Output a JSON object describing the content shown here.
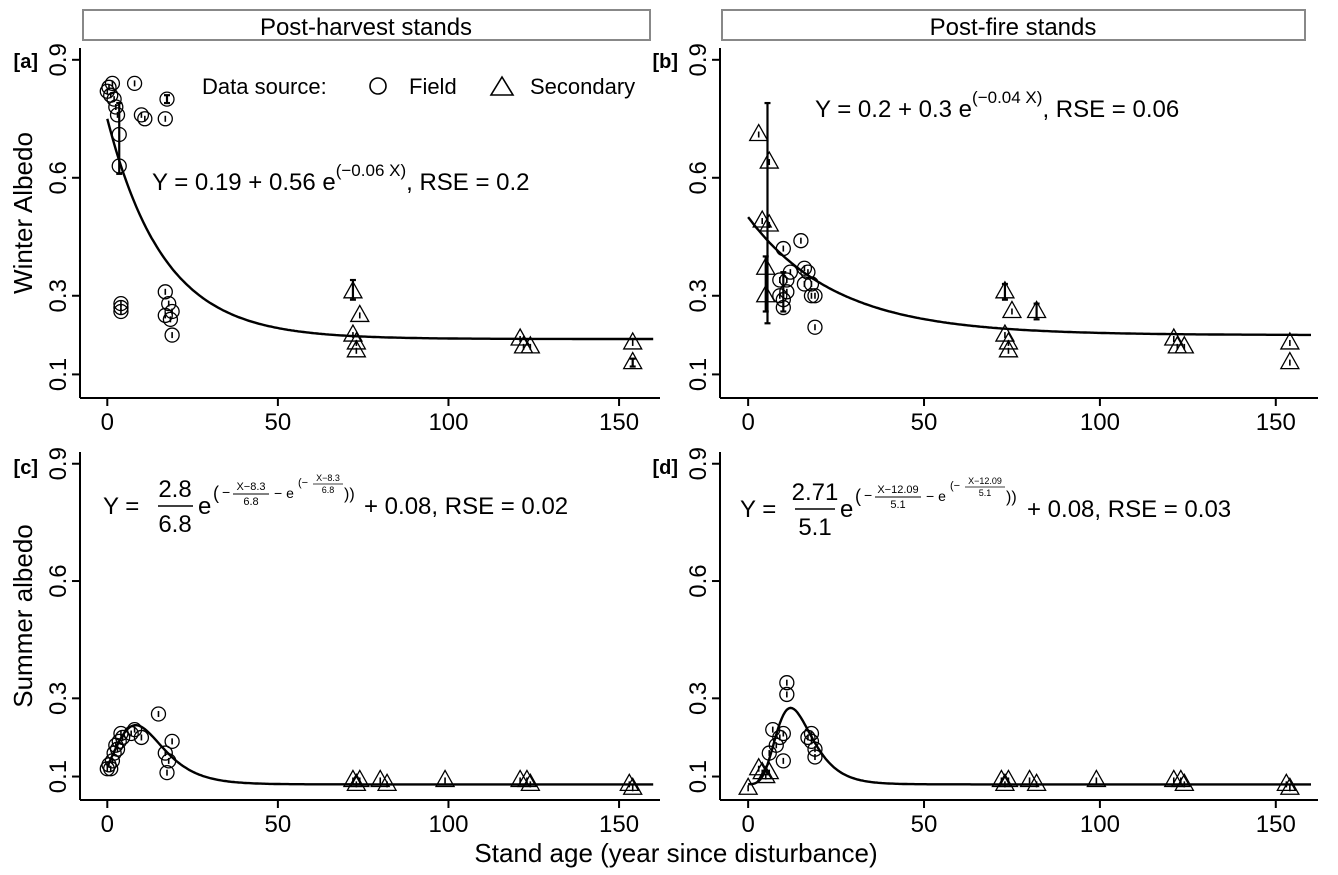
{
  "strips": {
    "left": "Post-harvest stands",
    "right": "Post-fire stands"
  },
  "ylabels": {
    "top": "Winter Albedo",
    "bottom": "Summer albedo"
  },
  "xlabel": "Stand age (year since disturbance)",
  "legend": {
    "title": "Data source:",
    "field": "Field",
    "secondary": "Secondary"
  },
  "equations": {
    "a": {
      "main": "Y = 0.19 + 0.56 e",
      "exp": "(−0.06 X)",
      "tail": ", RSE = 0.2"
    },
    "b": {
      "main": "Y = 0.2 + 0.3 e",
      "exp": "(−0.04 X)",
      "tail": ", RSE = 0.06"
    },
    "c": {
      "Y": "Y =",
      "num": "2.8",
      "den": "6.8",
      "e": "e",
      "open": "(",
      "minus": "−",
      "fnum": "X−8.3",
      "fden": "6.8",
      "minus2": "− e",
      "open2": "(−",
      "inum": "X−8.3",
      "iden": "6.8",
      "close": "))",
      "tail": "+ 0.08, RSE = 0.02"
    },
    "d": {
      "Y": "Y =",
      "num": "2.71",
      "den": "5.1",
      "e": "e",
      "open": "(",
      "minus": "−",
      "fnum": "X−12.09",
      "fden": "5.1",
      "minus2": "− e",
      "open2": "(−",
      "inum": "X−12.09",
      "iden": "5.1",
      "close": "))",
      "tail": "+ 0.08, RSE = 0.03"
    }
  },
  "chart_data": [
    {
      "panel": "[a]",
      "type": "scatter",
      "xlim": [
        -8,
        162
      ],
      "ylim": [
        0.04,
        0.93
      ],
      "xticks": [
        "0",
        "50",
        "100",
        "150"
      ],
      "yticks": [
        "0.1",
        "0.3",
        "0.6",
        "0.9"
      ],
      "fit": {
        "model": "exp",
        "a": 0.19,
        "b": 0.56,
        "k": 0.06
      },
      "field": [
        [
          0,
          0.82
        ],
        [
          0.5,
          0.83
        ],
        [
          1,
          0.81
        ],
        [
          1.5,
          0.84
        ],
        [
          2,
          0.8
        ],
        [
          2.5,
          0.78
        ],
        [
          3,
          0.76
        ],
        [
          3.5,
          0.71
        ],
        [
          3.5,
          0.63
        ],
        [
          4,
          0.27
        ],
        [
          4,
          0.28
        ],
        [
          4,
          0.26
        ],
        [
          8,
          0.84
        ],
        [
          10,
          0.76
        ],
        [
          11,
          0.75
        ],
        [
          17,
          0.31
        ],
        [
          17,
          0.25
        ],
        [
          18,
          0.28
        ],
        [
          18.5,
          0.24
        ],
        [
          19,
          0.26
        ],
        [
          19,
          0.2
        ],
        [
          17,
          0.75
        ],
        [
          17.5,
          0.8
        ]
      ],
      "field_err": [
        [
          3.5,
          0.61,
          0.79
        ],
        [
          17.5,
          0.79,
          0.81
        ]
      ],
      "secondary": [
        [
          72,
          0.31
        ],
        [
          72,
          0.2
        ],
        [
          73,
          0.18
        ],
        [
          73,
          0.16
        ],
        [
          74,
          0.25
        ],
        [
          121,
          0.19
        ],
        [
          122,
          0.17
        ],
        [
          124,
          0.17
        ],
        [
          154,
          0.18
        ],
        [
          154,
          0.13
        ]
      ],
      "secondary_err": [
        [
          72,
          0.29,
          0.34
        ],
        [
          154,
          0.12,
          0.14
        ]
      ]
    },
    {
      "panel": "[b]",
      "type": "scatter",
      "xlim": [
        -8,
        162
      ],
      "ylim": [
        0.04,
        0.93
      ],
      "xticks": [
        "0",
        "50",
        "100",
        "150"
      ],
      "yticks": [
        "0.1",
        "0.3",
        "0.6",
        "0.9"
      ],
      "fit": {
        "model": "exp",
        "a": 0.2,
        "b": 0.3,
        "k": 0.04
      },
      "field": [
        [
          9,
          0.34
        ],
        [
          9,
          0.3
        ],
        [
          10,
          0.29
        ],
        [
          10,
          0.27
        ],
        [
          10,
          0.42
        ],
        [
          11,
          0.34
        ],
        [
          11,
          0.31
        ],
        [
          15,
          0.44
        ],
        [
          16,
          0.37
        ],
        [
          16,
          0.33
        ],
        [
          17,
          0.36
        ],
        [
          18,
          0.33
        ],
        [
          18,
          0.3
        ],
        [
          19,
          0.3
        ],
        [
          19,
          0.22
        ],
        [
          12,
          0.36
        ]
      ],
      "field_err": [
        [
          10,
          0.26,
          0.36
        ]
      ],
      "secondary": [
        [
          3,
          0.71
        ],
        [
          4,
          0.49
        ],
        [
          5,
          0.3
        ],
        [
          5,
          0.37
        ],
        [
          6,
          0.64
        ],
        [
          6,
          0.48
        ],
        [
          73,
          0.31
        ],
        [
          73,
          0.2
        ],
        [
          74,
          0.18
        ],
        [
          74,
          0.16
        ],
        [
          75,
          0.26
        ],
        [
          82,
          0.26
        ],
        [
          121,
          0.19
        ],
        [
          122,
          0.17
        ],
        [
          124,
          0.17
        ],
        [
          154,
          0.18
        ],
        [
          154,
          0.13
        ]
      ],
      "secondary_err": [
        [
          5.5,
          0.23,
          0.79
        ],
        [
          5,
          0.26,
          0.4
        ],
        [
          73,
          0.29,
          0.33
        ],
        [
          82,
          0.24,
          0.28
        ]
      ]
    },
    {
      "panel": "[c]",
      "type": "scatter",
      "xlim": [
        -8,
        162
      ],
      "ylim": [
        0.04,
        0.93
      ],
      "xticks": [
        "0",
        "50",
        "100",
        "150"
      ],
      "yticks": [
        "0.1",
        "0.3",
        "0.6",
        "0.9"
      ],
      "fit": {
        "model": "gumbel",
        "A": 2.8,
        "mu": 8.3,
        "beta": 6.8,
        "c": 0.08
      },
      "field": [
        [
          0,
          0.12
        ],
        [
          0.5,
          0.13
        ],
        [
          1,
          0.12
        ],
        [
          1.5,
          0.14
        ],
        [
          2,
          0.16
        ],
        [
          2.5,
          0.18
        ],
        [
          3,
          0.17
        ],
        [
          3.5,
          0.19
        ],
        [
          4,
          0.21
        ],
        [
          4.5,
          0.2
        ],
        [
          7,
          0.21
        ],
        [
          8,
          0.22
        ],
        [
          10,
          0.2
        ],
        [
          15,
          0.26
        ],
        [
          17,
          0.16
        ],
        [
          17.5,
          0.11
        ],
        [
          18,
          0.14
        ],
        [
          19,
          0.19
        ]
      ],
      "field_err": [],
      "secondary": [
        [
          72,
          0.09
        ],
        [
          73,
          0.08
        ],
        [
          74,
          0.09
        ],
        [
          80,
          0.09
        ],
        [
          82,
          0.08
        ],
        [
          99,
          0.09
        ],
        [
          121,
          0.09
        ],
        [
          123,
          0.09
        ],
        [
          124,
          0.08
        ],
        [
          153,
          0.08
        ],
        [
          154,
          0.07
        ]
      ],
      "secondary_err": []
    },
    {
      "panel": "[d]",
      "type": "scatter",
      "xlim": [
        -8,
        162
      ],
      "ylim": [
        0.04,
        0.93
      ],
      "xticks": [
        "0",
        "50",
        "100",
        "150"
      ],
      "yticks": [
        "0.1",
        "0.3",
        "0.6",
        "0.9"
      ],
      "fit": {
        "model": "gumbel",
        "A": 2.71,
        "mu": 12.09,
        "beta": 5.1,
        "c": 0.08,
        "xstart": 0
      },
      "field": [
        [
          6,
          0.16
        ],
        [
          7,
          0.22
        ],
        [
          8,
          0.18
        ],
        [
          9,
          0.2
        ],
        [
          10,
          0.14
        ],
        [
          10,
          0.21
        ],
        [
          11,
          0.34
        ],
        [
          11,
          0.31
        ],
        [
          17,
          0.2
        ],
        [
          18,
          0.19
        ],
        [
          18,
          0.21
        ],
        [
          19,
          0.17
        ],
        [
          19,
          0.15
        ]
      ],
      "field_err": [],
      "secondary": [
        [
          0,
          0.07
        ],
        [
          3,
          0.12
        ],
        [
          4,
          0.11
        ],
        [
          5,
          0.1
        ],
        [
          6,
          0.11
        ],
        [
          72,
          0.09
        ],
        [
          73,
          0.08
        ],
        [
          74,
          0.09
        ],
        [
          80,
          0.09
        ],
        [
          82,
          0.08
        ],
        [
          99,
          0.09
        ],
        [
          121,
          0.09
        ],
        [
          123,
          0.09
        ],
        [
          124,
          0.08
        ],
        [
          153,
          0.08
        ],
        [
          154,
          0.07
        ]
      ],
      "secondary_err": []
    }
  ]
}
